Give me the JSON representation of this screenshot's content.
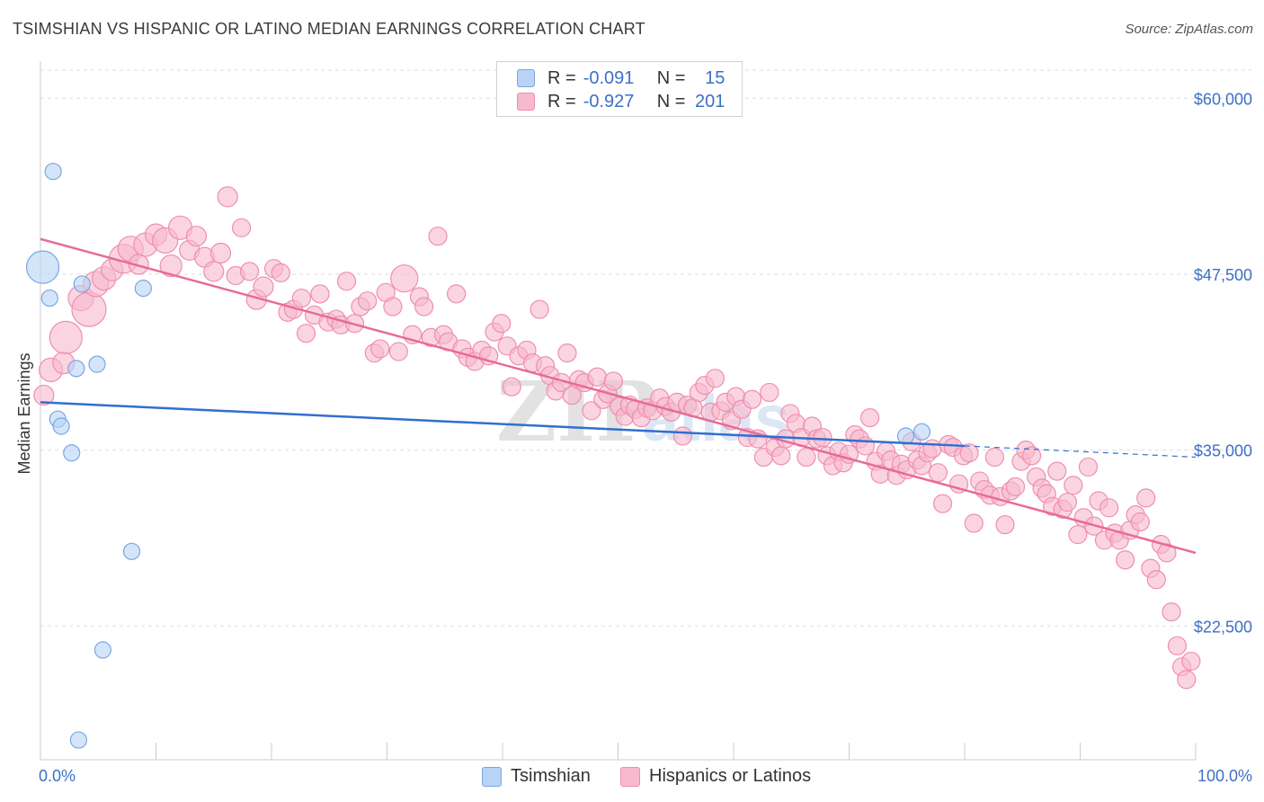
{
  "header": {
    "title": "TSIMSHIAN VS HISPANIC OR LATINO MEDIAN EARNINGS CORRELATION CHART",
    "source": "Source: ZipAtlas.com"
  },
  "legend": {
    "r_label": "R =",
    "n_label": "N =",
    "rows": [
      {
        "r": "-0.091",
        "n": "15"
      },
      {
        "r": "-0.927",
        "n": "201"
      }
    ]
  },
  "watermark": {
    "zip": "ZIP",
    "atlas": "atlas"
  },
  "colors": {
    "tsimshian_fill": "#b8d3f5",
    "tsimshian_stroke": "#7aa7e0",
    "tsimshian_line": "#2f6fd0",
    "hispanic_fill": "#f7b9cd",
    "hispanic_stroke": "#ef8eae",
    "hispanic_line": "#e86a96",
    "axis_label": "#3d6fc6",
    "grid": "#dddddd"
  },
  "chart_data": {
    "type": "scatter",
    "title": "TSIMSHIAN VS HISPANIC OR LATINO MEDIAN EARNINGS CORRELATION CHART",
    "xlabel": "",
    "ylabel": "Median Earnings",
    "xlim": [
      0,
      100
    ],
    "ylim": [
      13000,
      62000
    ],
    "x_tick_labels": [
      "0.0%",
      "100.0%"
    ],
    "y_ticks": [
      22500,
      35000,
      47500,
      60000
    ],
    "y_tick_labels": [
      "$22,500",
      "$35,000",
      "$47,500",
      "$60,000"
    ],
    "grid": true,
    "legend_position": "top-center",
    "series": [
      {
        "name": "Tsimshian",
        "points": [
          [
            0.2,
            48000,
            18
          ],
          [
            0.8,
            45800,
            9
          ],
          [
            1.1,
            54800,
            9
          ],
          [
            1.5,
            37200,
            9
          ],
          [
            1.8,
            36700,
            9
          ],
          [
            2.7,
            34800,
            9
          ],
          [
            3.1,
            40800,
            9
          ],
          [
            3.3,
            14400,
            9
          ],
          [
            3.6,
            46800,
            9
          ],
          [
            4.9,
            41100,
            9
          ],
          [
            7.9,
            27800,
            9
          ],
          [
            8.9,
            46500,
            9
          ],
          [
            5.4,
            20800,
            9
          ],
          [
            74.9,
            36000,
            9
          ],
          [
            76.3,
            36300,
            9
          ]
        ],
        "trend": {
          "x": [
            0,
            80
          ],
          "y": [
            38400,
            35300
          ]
        },
        "trend_dashed": {
          "x": [
            80,
            100
          ],
          "y": [
            35300,
            34500
          ]
        }
      },
      {
        "name": "Hispanics or Latinos",
        "points": [
          [
            0.3,
            38900,
            11
          ],
          [
            0.9,
            40700,
            13
          ],
          [
            2.0,
            41200,
            12
          ],
          [
            2.2,
            43000,
            18
          ],
          [
            3.5,
            45800,
            14
          ],
          [
            4.2,
            45000,
            19
          ],
          [
            4.8,
            46800,
            14
          ],
          [
            5.5,
            47200,
            13
          ],
          [
            6.2,
            47800,
            12
          ],
          [
            7.2,
            48600,
            16
          ],
          [
            7.8,
            49300,
            14
          ],
          [
            8.5,
            48200,
            11
          ],
          [
            9.1,
            49600,
            13
          ],
          [
            10.0,
            50300,
            12
          ],
          [
            10.8,
            49900,
            14
          ],
          [
            11.3,
            48100,
            12
          ],
          [
            12.1,
            50800,
            13
          ],
          [
            12.9,
            49200,
            11
          ],
          [
            13.5,
            50200,
            11
          ],
          [
            14.2,
            48700,
            11
          ],
          [
            15.0,
            47700,
            11
          ],
          [
            15.6,
            49000,
            11
          ],
          [
            16.2,
            53000,
            11
          ],
          [
            16.9,
            47400,
            10
          ],
          [
            17.4,
            50800,
            10
          ],
          [
            18.1,
            47700,
            10
          ],
          [
            18.7,
            45700,
            11
          ],
          [
            19.3,
            46600,
            11
          ],
          [
            20.2,
            47900,
            10
          ],
          [
            20.8,
            47600,
            10
          ],
          [
            21.4,
            44800,
            10
          ],
          [
            21.9,
            45000,
            10
          ],
          [
            22.6,
            45800,
            10
          ],
          [
            23.0,
            43300,
            10
          ],
          [
            23.7,
            44600,
            10
          ],
          [
            24.2,
            46100,
            10
          ],
          [
            24.9,
            44100,
            10
          ],
          [
            25.6,
            44300,
            10
          ],
          [
            26.0,
            43900,
            10
          ],
          [
            26.5,
            47000,
            10
          ],
          [
            27.2,
            44000,
            10
          ],
          [
            27.7,
            45200,
            10
          ],
          [
            28.3,
            45600,
            10
          ],
          [
            28.9,
            41900,
            10
          ],
          [
            29.4,
            42200,
            10
          ],
          [
            29.9,
            46200,
            10
          ],
          [
            30.5,
            45200,
            10
          ],
          [
            31.0,
            42000,
            10
          ],
          [
            31.5,
            47200,
            15
          ],
          [
            32.2,
            43200,
            10
          ],
          [
            32.8,
            45900,
            10
          ],
          [
            33.2,
            45200,
            10
          ],
          [
            33.8,
            43000,
            10
          ],
          [
            34.4,
            50200,
            10
          ],
          [
            34.9,
            43200,
            10
          ],
          [
            35.3,
            42700,
            10
          ],
          [
            36.0,
            46100,
            10
          ],
          [
            36.5,
            42200,
            10
          ],
          [
            37.0,
            41600,
            10
          ],
          [
            37.6,
            41300,
            10
          ],
          [
            38.2,
            42100,
            10
          ],
          [
            38.8,
            41700,
            10
          ],
          [
            39.3,
            43400,
            10
          ],
          [
            39.9,
            44000,
            10
          ],
          [
            40.4,
            42400,
            10
          ],
          [
            40.8,
            39500,
            10
          ],
          [
            41.4,
            41700,
            10
          ],
          [
            42.1,
            42100,
            10
          ],
          [
            42.6,
            41200,
            10
          ],
          [
            43.2,
            45000,
            10
          ],
          [
            43.7,
            41000,
            10
          ],
          [
            44.1,
            40300,
            10
          ],
          [
            44.6,
            39200,
            10
          ],
          [
            45.1,
            39800,
            10
          ],
          [
            45.6,
            41900,
            10
          ],
          [
            46.0,
            38900,
            10
          ],
          [
            46.6,
            40000,
            10
          ],
          [
            47.1,
            39800,
            10
          ],
          [
            47.7,
            37800,
            10
          ],
          [
            48.2,
            40200,
            10
          ],
          [
            48.7,
            38600,
            10
          ],
          [
            49.1,
            39000,
            10
          ],
          [
            49.6,
            39900,
            10
          ],
          [
            50.1,
            38100,
            10
          ],
          [
            50.6,
            37400,
            10
          ],
          [
            51.0,
            38200,
            10
          ],
          [
            51.5,
            37900,
            10
          ],
          [
            52.0,
            37300,
            10
          ],
          [
            52.5,
            38000,
            10
          ],
          [
            53.0,
            37800,
            10
          ],
          [
            53.6,
            38700,
            10
          ],
          [
            54.1,
            38100,
            10
          ],
          [
            54.6,
            37700,
            10
          ],
          [
            55.1,
            38400,
            10
          ],
          [
            55.6,
            36000,
            10
          ],
          [
            56.0,
            38200,
            10
          ],
          [
            56.5,
            38000,
            10
          ],
          [
            57.0,
            39100,
            10
          ],
          [
            57.5,
            39600,
            10
          ],
          [
            58.0,
            37700,
            10
          ],
          [
            58.4,
            40100,
            10
          ],
          [
            58.9,
            37800,
            10
          ],
          [
            59.3,
            38400,
            10
          ],
          [
            59.8,
            37100,
            10
          ],
          [
            60.2,
            38800,
            10
          ],
          [
            60.7,
            37900,
            10
          ],
          [
            61.2,
            35900,
            10
          ],
          [
            61.6,
            38600,
            10
          ],
          [
            62.1,
            35800,
            10
          ],
          [
            62.6,
            34500,
            10
          ],
          [
            63.1,
            39100,
            10
          ],
          [
            63.6,
            35200,
            10
          ],
          [
            64.1,
            34600,
            10
          ],
          [
            64.5,
            35800,
            10
          ],
          [
            64.9,
            37600,
            10
          ],
          [
            65.4,
            36900,
            10
          ],
          [
            65.9,
            35900,
            10
          ],
          [
            66.3,
            34500,
            10
          ],
          [
            66.8,
            36700,
            10
          ],
          [
            67.2,
            35800,
            10
          ],
          [
            67.7,
            35900,
            10
          ],
          [
            68.1,
            34600,
            10
          ],
          [
            68.6,
            33900,
            10
          ],
          [
            69.1,
            34900,
            10
          ],
          [
            69.5,
            34100,
            10
          ],
          [
            70.0,
            34700,
            10
          ],
          [
            70.5,
            36100,
            10
          ],
          [
            70.9,
            35800,
            10
          ],
          [
            71.4,
            35300,
            10
          ],
          [
            71.8,
            37300,
            10
          ],
          [
            72.3,
            34200,
            10
          ],
          [
            72.7,
            33300,
            10
          ],
          [
            73.2,
            34900,
            10
          ],
          [
            73.6,
            34300,
            10
          ],
          [
            74.1,
            33200,
            10
          ],
          [
            74.5,
            34000,
            10
          ],
          [
            75.0,
            33600,
            10
          ],
          [
            75.4,
            35600,
            10
          ],
          [
            75.9,
            34300,
            10
          ],
          [
            76.3,
            33900,
            10
          ],
          [
            76.8,
            34800,
            10
          ],
          [
            77.2,
            35100,
            10
          ],
          [
            77.7,
            33400,
            10
          ],
          [
            78.1,
            31200,
            10
          ],
          [
            78.6,
            35400,
            10
          ],
          [
            79.0,
            35200,
            10
          ],
          [
            79.5,
            32600,
            10
          ],
          [
            79.9,
            34600,
            10
          ],
          [
            80.4,
            34800,
            10
          ],
          [
            80.8,
            29800,
            10
          ],
          [
            81.3,
            32800,
            10
          ],
          [
            81.7,
            32200,
            10
          ],
          [
            82.2,
            31800,
            10
          ],
          [
            82.6,
            34500,
            10
          ],
          [
            83.1,
            31700,
            10
          ],
          [
            83.5,
            29700,
            10
          ],
          [
            84.0,
            32100,
            10
          ],
          [
            84.4,
            32400,
            10
          ],
          [
            84.9,
            34200,
            10
          ],
          [
            85.3,
            35000,
            10
          ],
          [
            85.8,
            34600,
            10
          ],
          [
            86.2,
            33100,
            10
          ],
          [
            86.7,
            32300,
            10
          ],
          [
            87.1,
            31900,
            10
          ],
          [
            87.6,
            31000,
            10
          ],
          [
            88.0,
            33500,
            10
          ],
          [
            88.5,
            30800,
            10
          ],
          [
            88.9,
            31300,
            10
          ],
          [
            89.4,
            32500,
            10
          ],
          [
            89.8,
            29000,
            10
          ],
          [
            90.3,
            30200,
            10
          ],
          [
            90.7,
            33800,
            10
          ],
          [
            91.2,
            29600,
            10
          ],
          [
            91.6,
            31400,
            10
          ],
          [
            92.1,
            28600,
            10
          ],
          [
            92.5,
            30900,
            10
          ],
          [
            93.0,
            29100,
            10
          ],
          [
            93.4,
            28600,
            10
          ],
          [
            93.9,
            27200,
            10
          ],
          [
            94.3,
            29300,
            10
          ],
          [
            94.8,
            30400,
            10
          ],
          [
            95.2,
            29900,
            10
          ],
          [
            95.7,
            31600,
            10
          ],
          [
            96.1,
            26600,
            10
          ],
          [
            96.6,
            25800,
            10
          ],
          [
            97.0,
            28300,
            10
          ],
          [
            97.5,
            27700,
            10
          ],
          [
            97.9,
            23500,
            10
          ],
          [
            98.4,
            21100,
            10
          ],
          [
            98.8,
            19600,
            10
          ],
          [
            99.2,
            18700,
            10
          ],
          [
            99.6,
            20000,
            10
          ]
        ],
        "trend": {
          "x": [
            0,
            100
          ],
          "y": [
            50000,
            27700
          ]
        }
      }
    ]
  }
}
